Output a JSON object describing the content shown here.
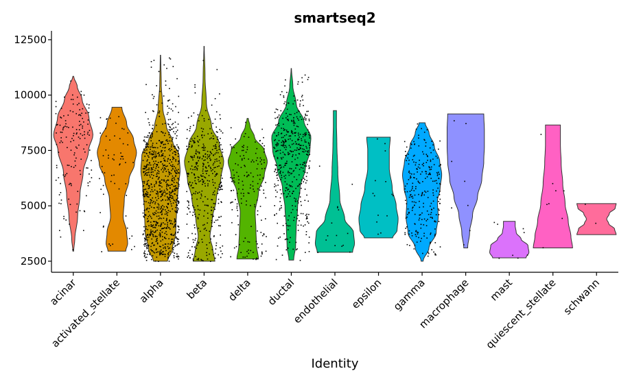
{
  "chart_data": {
    "type": "violin",
    "title": "smartseq2",
    "xlabel": "Identity",
    "ylabel": "",
    "ylim": [
      2000,
      12900
    ],
    "yticks": [
      2500,
      5000,
      7500,
      10000,
      12500
    ],
    "ytick_labels": [
      "2500",
      "5000",
      "7500",
      "10000",
      "12500"
    ],
    "legend": "none",
    "categories": [
      {
        "name": "acinar",
        "color": "#F8766D",
        "min": 2950,
        "max": 10850,
        "density": [
          [
            2950,
            0.02
          ],
          [
            3500,
            0.08
          ],
          [
            4500,
            0.22
          ],
          [
            5500,
            0.34
          ],
          [
            6500,
            0.5
          ],
          [
            7500,
            0.78
          ],
          [
            8200,
            1.0
          ],
          [
            9000,
            0.8
          ],
          [
            9800,
            0.45
          ],
          [
            10400,
            0.2
          ],
          [
            10850,
            0.02
          ]
        ],
        "points": 150
      },
      {
        "name": "activated_stellate",
        "color": "#E38900",
        "min": 2950,
        "max": 9450,
        "density": [
          [
            2950,
            0.45
          ],
          [
            3300,
            0.55
          ],
          [
            3800,
            0.5
          ],
          [
            4500,
            0.32
          ],
          [
            5300,
            0.38
          ],
          [
            6200,
            0.62
          ],
          [
            6900,
            0.9
          ],
          [
            7400,
            1.0
          ],
          [
            8000,
            0.85
          ],
          [
            8700,
            0.5
          ],
          [
            9450,
            0.25
          ]
        ],
        "points": 60
      },
      {
        "name": "alpha",
        "color": "#C49A00",
        "min": 2500,
        "max": 11800,
        "density": [
          [
            2500,
            0.35
          ],
          [
            3000,
            0.6
          ],
          [
            3800,
            0.78
          ],
          [
            4800,
            0.82
          ],
          [
            5800,
            0.9
          ],
          [
            6600,
            1.0
          ],
          [
            7300,
            0.95
          ],
          [
            7900,
            0.62
          ],
          [
            8600,
            0.3
          ],
          [
            9400,
            0.12
          ],
          [
            10500,
            0.04
          ],
          [
            11800,
            0.01
          ]
        ],
        "points": 900
      },
      {
        "name": "beta",
        "color": "#99A800",
        "min": 2500,
        "max": 12200,
        "density": [
          [
            2500,
            0.55
          ],
          [
            3000,
            0.45
          ],
          [
            3600,
            0.3
          ],
          [
            4400,
            0.42
          ],
          [
            5300,
            0.62
          ],
          [
            6200,
            0.85
          ],
          [
            7000,
            1.0
          ],
          [
            7800,
            0.78
          ],
          [
            8600,
            0.38
          ],
          [
            9600,
            0.12
          ],
          [
            10800,
            0.05
          ],
          [
            12200,
            0.01
          ]
        ],
        "points": 420
      },
      {
        "name": "delta",
        "color": "#53B400",
        "min": 2600,
        "max": 8950,
        "density": [
          [
            2600,
            0.55
          ],
          [
            3200,
            0.45
          ],
          [
            3900,
            0.42
          ],
          [
            4700,
            0.38
          ],
          [
            5600,
            0.55
          ],
          [
            6400,
            0.85
          ],
          [
            7000,
            1.0
          ],
          [
            7500,
            0.85
          ],
          [
            8100,
            0.35
          ],
          [
            8600,
            0.12
          ],
          [
            8950,
            0.03
          ]
        ],
        "points": 170
      },
      {
        "name": "ductal",
        "color": "#00BC56",
        "min": 2550,
        "max": 11200,
        "density": [
          [
            2550,
            0.12
          ],
          [
            3200,
            0.22
          ],
          [
            4000,
            0.25
          ],
          [
            4900,
            0.32
          ],
          [
            5800,
            0.45
          ],
          [
            6700,
            0.72
          ],
          [
            7500,
            0.95
          ],
          [
            8100,
            1.0
          ],
          [
            8800,
            0.65
          ],
          [
            9600,
            0.25
          ],
          [
            10400,
            0.08
          ],
          [
            11200,
            0.01
          ]
        ],
        "points": 450
      },
      {
        "name": "endothelial",
        "color": "#00C094",
        "min": 2900,
        "max": 9300,
        "density": [
          [
            2900,
            0.9
          ],
          [
            3300,
            1.0
          ],
          [
            3800,
            0.95
          ],
          [
            4400,
            0.5
          ],
          [
            5300,
            0.25
          ],
          [
            6500,
            0.15
          ],
          [
            7800,
            0.1
          ],
          [
            8700,
            0.08
          ],
          [
            9300,
            0.08
          ]
        ],
        "points": 15
      },
      {
        "name": "epsilon",
        "color": "#00BFC4",
        "min": 3550,
        "max": 8100,
        "density": [
          [
            3550,
            0.72
          ],
          [
            3900,
            0.95
          ],
          [
            4400,
            1.0
          ],
          [
            5000,
            0.9
          ],
          [
            5800,
            0.7
          ],
          [
            6700,
            0.55
          ],
          [
            7500,
            0.55
          ],
          [
            8100,
            0.6
          ]
        ],
        "points": 14
      },
      {
        "name": "gamma",
        "color": "#00A9FF",
        "min": 2500,
        "max": 8750,
        "density": [
          [
            2500,
            0.05
          ],
          [
            3100,
            0.35
          ],
          [
            3800,
            0.72
          ],
          [
            4500,
            0.82
          ],
          [
            5200,
            0.78
          ],
          [
            5800,
            0.92
          ],
          [
            6400,
            1.0
          ],
          [
            7000,
            0.9
          ],
          [
            7700,
            0.62
          ],
          [
            8300,
            0.35
          ],
          [
            8750,
            0.15
          ]
        ],
        "points": 260
      },
      {
        "name": "macrophage",
        "color": "#8F91FF",
        "min": 3100,
        "max": 9150,
        "density": [
          [
            3100,
            0.1
          ],
          [
            3800,
            0.2
          ],
          [
            4600,
            0.35
          ],
          [
            5400,
            0.6
          ],
          [
            6200,
            0.82
          ],
          [
            7000,
            0.92
          ],
          [
            7700,
            0.95
          ],
          [
            8400,
            0.95
          ],
          [
            9150,
            0.92
          ]
        ],
        "points": 8
      },
      {
        "name": "mast",
        "color": "#DB72FB",
        "min": 2650,
        "max": 4300,
        "density": [
          [
            2650,
            0.85
          ],
          [
            2900,
            1.0
          ],
          [
            3200,
            0.95
          ],
          [
            3500,
            0.6
          ],
          [
            3800,
            0.35
          ],
          [
            4100,
            0.3
          ],
          [
            4300,
            0.3
          ]
        ],
        "points": 8
      },
      {
        "name": "quiescent_stellate",
        "color": "#FF61C3",
        "min": 3100,
        "max": 8650,
        "density": [
          [
            3100,
            1.0
          ],
          [
            3600,
            0.92
          ],
          [
            4300,
            0.78
          ],
          [
            5100,
            0.62
          ],
          [
            6000,
            0.5
          ],
          [
            6900,
            0.42
          ],
          [
            7800,
            0.38
          ],
          [
            8650,
            0.38
          ]
        ],
        "points": 8
      },
      {
        "name": "schwann",
        "color": "#FF6C9B",
        "min": 3700,
        "max": 5100,
        "density": [
          [
            3700,
            1.0
          ],
          [
            3950,
            0.92
          ],
          [
            4200,
            0.62
          ],
          [
            4400,
            0.52
          ],
          [
            4650,
            0.65
          ],
          [
            4900,
            0.95
          ],
          [
            5100,
            1.0
          ]
        ],
        "points": 2
      }
    ]
  }
}
